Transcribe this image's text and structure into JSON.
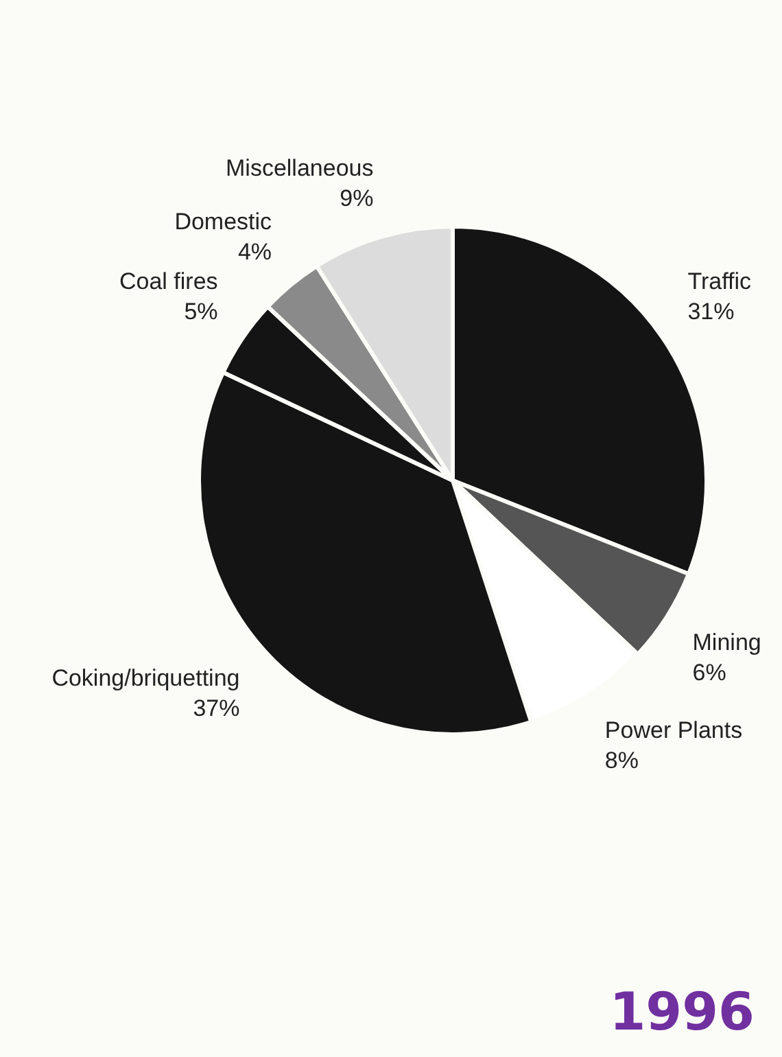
{
  "chart_data": {
    "type": "pie",
    "categories": [
      "Traffic",
      "Mining",
      "Power Plants",
      "Coking/briquetting",
      "Coal fires",
      "Domestic",
      "Miscellaneous"
    ],
    "values": [
      31,
      6,
      8,
      37,
      5,
      4,
      9
    ],
    "value_labels": [
      "31%",
      "6%",
      "8%",
      "37%",
      "5%",
      "4%",
      "9%"
    ],
    "colors": [
      "#141414",
      "#555555",
      "#ffffff",
      "#141414",
      "#141414",
      "#8a8a8a",
      "#dcdcdc"
    ],
    "legend": false,
    "annotations": [
      "1996"
    ]
  }
}
